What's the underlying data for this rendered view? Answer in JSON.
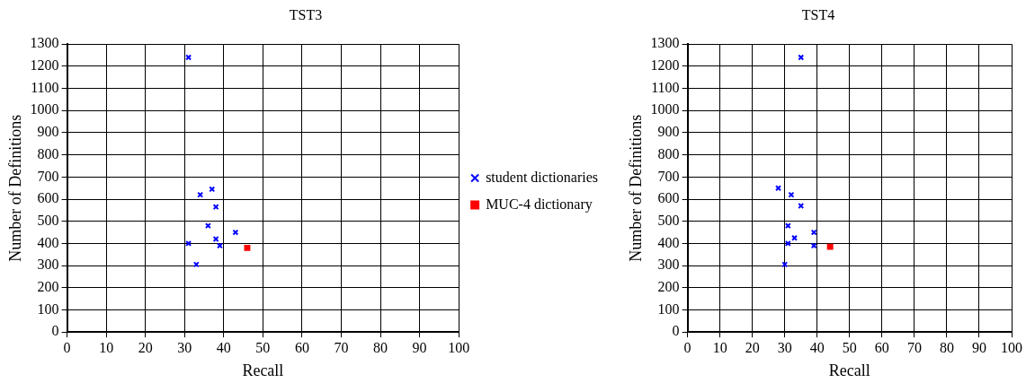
{
  "chart_data": [
    {
      "type": "scatter",
      "title": "TST3",
      "xlabel": "Recall",
      "ylabel": "Number of Definitions",
      "xlim": [
        0,
        100
      ],
      "xticks": [
        0,
        10,
        20,
        30,
        40,
        50,
        60,
        70,
        80,
        90,
        100
      ],
      "ylim": [
        0,
        1300
      ],
      "yticks": [
        0,
        100,
        200,
        300,
        400,
        500,
        600,
        700,
        800,
        900,
        1000,
        1100,
        1200,
        1300
      ],
      "grid": true,
      "legend": "right",
      "series": [
        {
          "name": "student dictionaries",
          "color": "#0000ff",
          "marker": "cross",
          "x": [
            31,
            34,
            37,
            38,
            36,
            43,
            38,
            39,
            31,
            33
          ],
          "values": [
            1240,
            620,
            645,
            565,
            480,
            450,
            420,
            390,
            400,
            305
          ]
        },
        {
          "name": "MUC-4 dictionary",
          "color": "#ff0000",
          "marker": "square",
          "x": [
            46
          ],
          "values": [
            380
          ]
        }
      ]
    },
    {
      "type": "scatter",
      "title": "TST4",
      "xlabel": "Recall",
      "ylabel": "Number of Definitions",
      "xlim": [
        0,
        100
      ],
      "xticks": [
        0,
        10,
        20,
        30,
        40,
        50,
        60,
        70,
        80,
        90,
        100
      ],
      "ylim": [
        0,
        1300
      ],
      "yticks": [
        0,
        100,
        200,
        300,
        400,
        500,
        600,
        700,
        800,
        900,
        1000,
        1100,
        1200,
        1300
      ],
      "grid": true,
      "series": [
        {
          "color": "#0000ff",
          "marker": "cross",
          "x": [
            35,
            28,
            32,
            35,
            31,
            39,
            33,
            31,
            39,
            30
          ],
          "values": [
            1240,
            650,
            620,
            570,
            480,
            450,
            425,
            400,
            390,
            305
          ]
        },
        {
          "color": "#ff0000",
          "marker": "square",
          "x": [
            44
          ],
          "values": [
            385
          ]
        }
      ]
    }
  ]
}
